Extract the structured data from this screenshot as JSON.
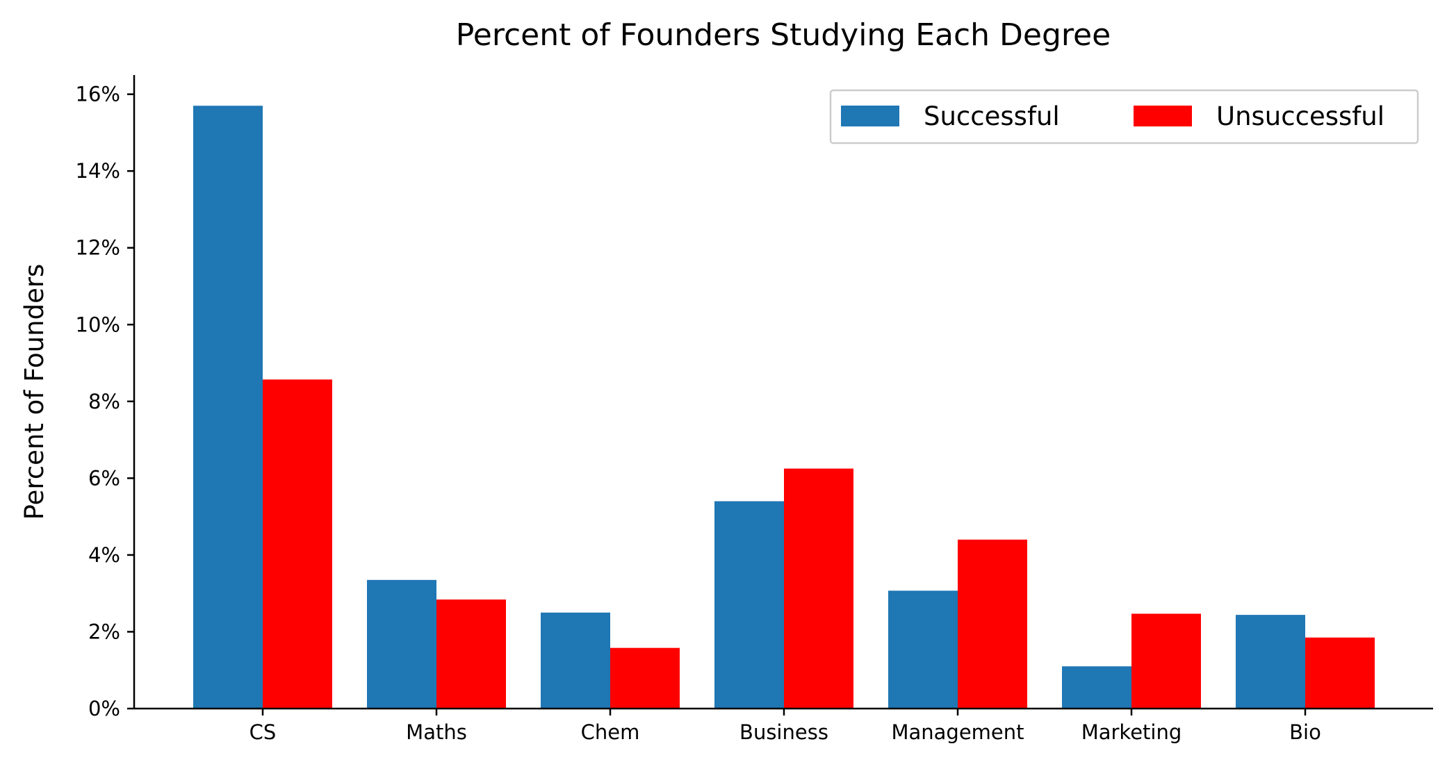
{
  "chart_data": {
    "type": "bar",
    "title": "Percent of Founders Studying Each Degree",
    "xlabel": "",
    "ylabel": "Percent of Founders",
    "categories": [
      "CS",
      "Maths",
      "Chem",
      "Business",
      "Management",
      "Marketing",
      "Bio"
    ],
    "series": [
      {
        "name": "Successful",
        "color": "#1f77b4",
        "values": [
          15.7,
          3.35,
          2.5,
          5.4,
          3.07,
          1.1,
          2.44
        ]
      },
      {
        "name": "Unsuccessful",
        "color": "#ff0000",
        "values": [
          8.57,
          2.84,
          1.58,
          6.25,
          4.4,
          2.47,
          1.85
        ]
      }
    ],
    "ylim": [
      0,
      16.5
    ],
    "yticks": [
      0,
      2,
      4,
      6,
      8,
      10,
      12,
      14,
      16
    ],
    "ytick_labels": [
      "0%",
      "2%",
      "4%",
      "6%",
      "8%",
      "10%",
      "12%",
      "14%",
      "16%"
    ],
    "grid": false,
    "legend_position": "top-right"
  }
}
